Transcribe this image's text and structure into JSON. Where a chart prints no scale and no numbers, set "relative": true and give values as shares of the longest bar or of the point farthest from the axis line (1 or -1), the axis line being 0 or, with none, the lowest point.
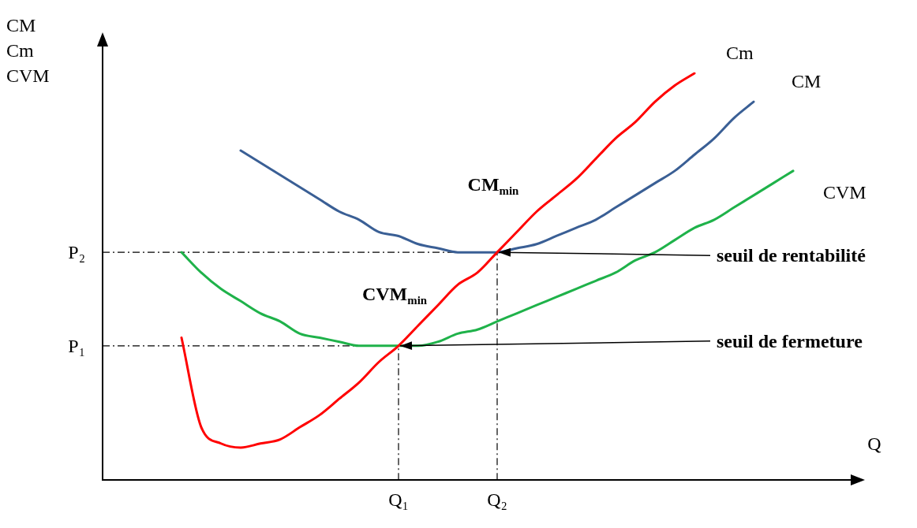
{
  "chart_data": {
    "type": "line",
    "relative": true,
    "xlabel": "Q",
    "ylabel": "CM\nCm\nCVM",
    "legend": false,
    "grid": false,
    "categories": [
      null,
      null,
      null,
      null,
      null,
      null,
      null,
      null,
      null,
      null,
      null,
      null,
      null,
      null,
      null,
      "Q₁",
      null,
      null,
      null,
      null,
      "Q₂",
      null,
      null,
      null,
      null,
      null,
      null,
      null,
      null,
      null,
      null,
      null,
      null,
      null,
      null,
      null,
      null,
      null,
      null
    ],
    "series": [
      {
        "name": "Cm",
        "color": "#ff0000",
        "values": [
          null,
          null,
          null,
          null,
          0.35,
          0.13,
          0.09,
          0.08,
          0.09,
          0.1,
          0.13,
          0.16,
          0.2,
          0.24,
          0.29,
          0.33,
          0.38,
          0.43,
          0.48,
          0.51,
          0.56,
          0.61,
          0.66,
          0.7,
          0.74,
          0.79,
          0.84,
          0.88,
          0.93,
          0.97,
          1,
          null,
          null,
          null,
          null,
          null,
          null,
          null,
          null
        ]
      },
      {
        "name": "CM",
        "color": "#3a5f95",
        "values": [
          null,
          null,
          null,
          null,
          null,
          null,
          null,
          0.81,
          0.78,
          0.75,
          0.72,
          0.69,
          0.66,
          0.64,
          0.61,
          0.6,
          0.58,
          0.57,
          0.56,
          0.56,
          0.56,
          0.57,
          0.58,
          0.6,
          0.62,
          0.64,
          0.67,
          0.7,
          0.73,
          0.76,
          0.8,
          0.84,
          0.89,
          0.93,
          null,
          null,
          null,
          null,
          null
        ]
      },
      {
        "name": "CVM",
        "color": "#1fb24a",
        "values": [
          null,
          null,
          null,
          null,
          0.56,
          0.51,
          0.47,
          0.44,
          0.41,
          0.39,
          0.36,
          0.35,
          0.34,
          0.33,
          0.33,
          0.33,
          0.33,
          0.34,
          0.36,
          0.37,
          0.39,
          0.41,
          0.43,
          0.45,
          0.47,
          0.49,
          0.51,
          0.54,
          0.56,
          0.59,
          0.62,
          0.64,
          0.67,
          0.7,
          0.73,
          0.76,
          null,
          null,
          null
        ]
      }
    ],
    "ref_lines": [
      {
        "axis": "y",
        "value": 0.56,
        "label": "P₂",
        "line_style": "dashdot"
      },
      {
        "axis": "x",
        "value": "Q₂",
        "line_style": "dashdot"
      },
      {
        "axis": "y",
        "value": 0.33,
        "label": "P₁",
        "line_style": "dashdot"
      },
      {
        "axis": "x",
        "value": "Q₁",
        "line_style": "dashdot"
      }
    ],
    "annotations": [
      {
        "text": "CM$_{min}$",
        "x": "Q₂",
        "y": 0.56
      },
      {
        "text": "CVM$_{min}$",
        "x": "Q₁",
        "y": 0.33
      },
      {
        "text": "seuil de rentabilité",
        "x": "Q₂",
        "y": 0.56
      },
      {
        "text": "seuil de fermeture",
        "x": "Q₁",
        "y": 0.33
      }
    ]
  }
}
